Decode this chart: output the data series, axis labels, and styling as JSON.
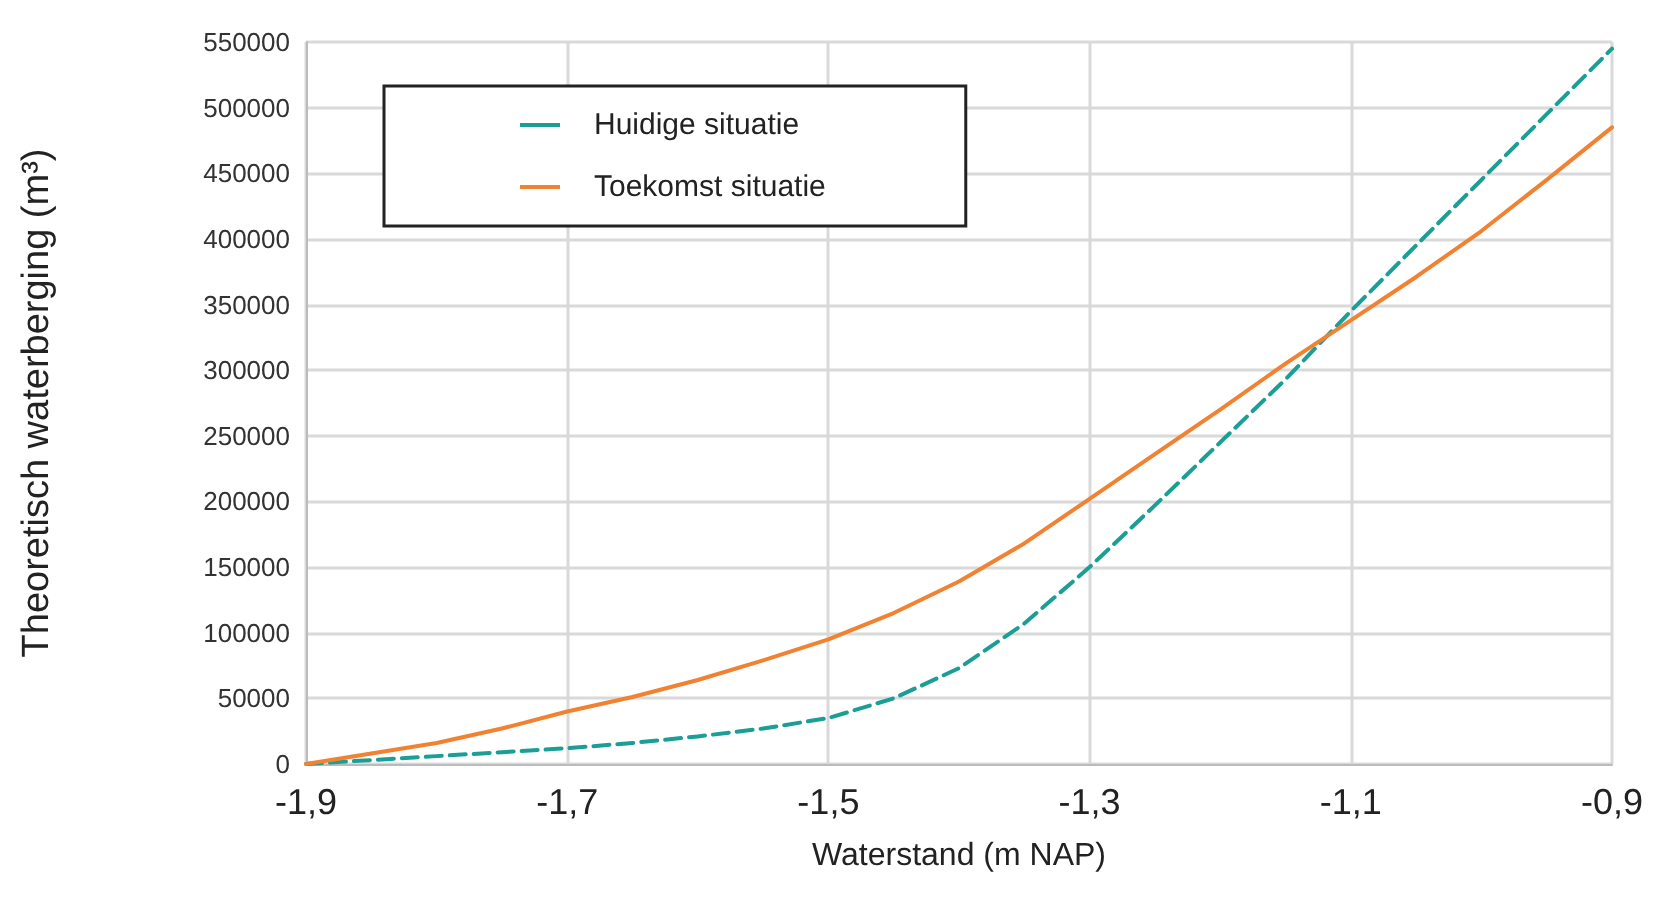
{
  "chart_data": {
    "type": "line",
    "xlabel": "Waterstand (m NAP)",
    "ylabel": "Theoretisch waterberging (m³)",
    "x": [
      -1.9,
      -1.85,
      -1.8,
      -1.75,
      -1.7,
      -1.65,
      -1.6,
      -1.55,
      -1.5,
      -1.45,
      -1.4,
      -1.35,
      -1.3,
      -1.25,
      -1.2,
      -1.15,
      -1.1,
      -1.05,
      -1.0,
      -0.95,
      -0.9
    ],
    "series": [
      {
        "name": "Huidige situatie",
        "color": "#1a9e96",
        "line_style": "dashed",
        "values": [
          0,
          3000,
          6000,
          9000,
          12000,
          16000,
          21000,
          27000,
          35000,
          50000,
          73000,
          107000,
          150000,
          197000,
          245000,
          293000,
          345000,
          395000,
          445000,
          495000,
          545000
        ]
      },
      {
        "name": "Toekomst situatie",
        "color": "#f08232",
        "line_style": "solid",
        "values": [
          0,
          8000,
          16000,
          27000,
          40000,
          51000,
          64000,
          79000,
          95000,
          115000,
          139000,
          168000,
          202000,
          236000,
          270000,
          305000,
          338000,
          371000,
          406000,
          445000,
          485000
        ]
      }
    ],
    "xlim": [
      -1.9,
      -0.9
    ],
    "xticks": [
      {
        "value": -1.9,
        "label": "-1,9"
      },
      {
        "value": -1.7,
        "label": "-1,7"
      },
      {
        "value": -1.5,
        "label": "-1,5"
      },
      {
        "value": -1.3,
        "label": "-1,3"
      },
      {
        "value": -1.1,
        "label": "-1,1"
      },
      {
        "value": -0.9,
        "label": "-0,9"
      }
    ],
    "ylim": [
      0,
      550000
    ],
    "yticks": [
      0,
      50000,
      100000,
      150000,
      200000,
      250000,
      300000,
      350000,
      400000,
      450000,
      500000,
      550000
    ],
    "grid": true,
    "legend": "top left",
    "marker": "none"
  }
}
